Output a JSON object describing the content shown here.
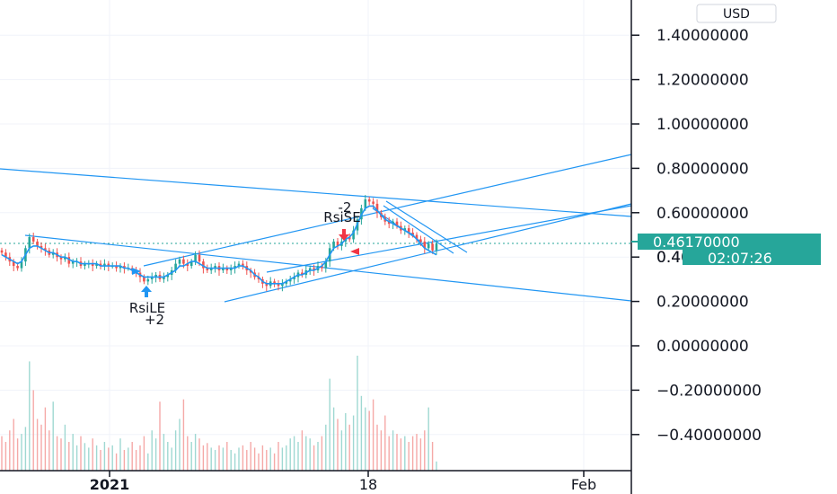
{
  "currency_button": "USD",
  "colors": {
    "up": "#26a69a",
    "down": "#ef5350",
    "trendline": "#2196f3",
    "ma": "#2196f3",
    "price_line": "#26a69a",
    "buy_arrow": "#2196f3",
    "sell_arrow": "#f23645",
    "grid": "#f0f3fa",
    "axis": "#131722"
  },
  "chart_data": {
    "type": "candlestick",
    "y_axis": {
      "ticks": [
        "1.40000000",
        "1.20000000",
        "1.00000000",
        "0.80000000",
        "0.60000000",
        "0.40000000",
        "0.20000000",
        "0.00000000",
        "−0.20000000",
        "−0.40000000"
      ],
      "tick_values": [
        1.4,
        1.2,
        1.0,
        0.8,
        0.6,
        0.4,
        0.2,
        0.0,
        -0.2,
        -0.4
      ],
      "range": [
        -0.58,
        1.55
      ]
    },
    "x_axis": {
      "ticks": [
        "2021",
        "18",
        "Feb"
      ],
      "tick_bold": [
        true,
        false,
        false
      ]
    },
    "last_price": "0.46170000",
    "last_price_value": 0.4617,
    "countdown": "02:07:26",
    "partial_tick_label": "0.4",
    "grid": true,
    "annotations": [
      {
        "label": "RsiLE",
        "qty": "+2",
        "side": "buy"
      },
      {
        "label": "RsiSE",
        "qty": "-2",
        "side": "sell"
      }
    ],
    "closes": [
      0.42,
      0.4,
      0.38,
      0.36,
      0.35,
      0.38,
      0.44,
      0.49,
      0.47,
      0.45,
      0.44,
      0.43,
      0.41,
      0.42,
      0.4,
      0.39,
      0.4,
      0.37,
      0.38,
      0.38,
      0.36,
      0.37,
      0.37,
      0.36,
      0.37,
      0.36,
      0.37,
      0.36,
      0.36,
      0.35,
      0.36,
      0.35,
      0.35,
      0.34,
      0.33,
      0.31,
      0.29,
      0.3,
      0.31,
      0.32,
      0.3,
      0.31,
      0.32,
      0.34,
      0.37,
      0.39,
      0.37,
      0.36,
      0.38,
      0.41,
      0.38,
      0.35,
      0.34,
      0.35,
      0.36,
      0.34,
      0.35,
      0.34,
      0.35,
      0.36,
      0.37,
      0.36,
      0.34,
      0.33,
      0.31,
      0.3,
      0.28,
      0.27,
      0.29,
      0.28,
      0.27,
      0.28,
      0.29,
      0.3,
      0.31,
      0.33,
      0.32,
      0.34,
      0.35,
      0.34,
      0.36,
      0.35,
      0.38,
      0.44,
      0.47,
      0.45,
      0.47,
      0.49,
      0.48,
      0.52,
      0.57,
      0.62,
      0.66,
      0.65,
      0.64,
      0.6,
      0.58,
      0.56,
      0.55,
      0.56,
      0.54,
      0.52,
      0.53,
      0.51,
      0.5,
      0.48,
      0.47,
      0.44,
      0.46,
      0.43,
      0.46
    ],
    "volumes": [
      0.3,
      0.25,
      0.35,
      0.45,
      0.28,
      0.32,
      0.38,
      0.95,
      0.7,
      0.45,
      0.4,
      0.55,
      0.35,
      0.6,
      0.3,
      0.28,
      0.4,
      0.25,
      0.32,
      0.22,
      0.3,
      0.24,
      0.2,
      0.28,
      0.22,
      0.18,
      0.25,
      0.2,
      0.22,
      0.15,
      0.28,
      0.18,
      0.2,
      0.25,
      0.18,
      0.22,
      0.3,
      0.15,
      0.35,
      0.28,
      0.6,
      0.32,
      0.25,
      0.2,
      0.35,
      0.45,
      0.62,
      0.3,
      0.25,
      0.32,
      0.28,
      0.22,
      0.24,
      0.2,
      0.18,
      0.22,
      0.2,
      0.25,
      0.18,
      0.15,
      0.2,
      0.22,
      0.18,
      0.25,
      0.2,
      0.15,
      0.22,
      0.18,
      0.2,
      0.15,
      0.25,
      0.2,
      0.22,
      0.28,
      0.3,
      0.25,
      0.35,
      0.3,
      0.28,
      0.22,
      0.25,
      0.3,
      0.4,
      0.8,
      0.55,
      0.45,
      0.35,
      0.5,
      0.4,
      0.48,
      1.0,
      0.65,
      0.55,
      0.52,
      0.62,
      0.4,
      0.35,
      0.48,
      0.3,
      0.35,
      0.32,
      0.28,
      0.3,
      0.25,
      0.3,
      0.32,
      0.28,
      0.35,
      0.55,
      0.25,
      0.08
    ],
    "series": [
      {
        "name": "",
        "kind": "moving-average",
        "values": [
          0.41,
          0.4,
          0.39,
          0.38,
          0.37,
          0.38,
          0.41,
          0.44,
          0.45,
          0.45,
          0.44,
          0.43,
          0.42,
          0.42,
          0.41,
          0.4,
          0.4,
          0.39,
          0.38,
          0.38,
          0.37,
          0.37,
          0.37,
          0.37,
          0.37,
          0.36,
          0.36,
          0.36,
          0.36,
          0.36,
          0.36,
          0.35,
          0.35,
          0.34,
          0.33,
          0.32,
          0.31,
          0.31,
          0.31,
          0.31,
          0.31,
          0.31,
          0.32,
          0.33,
          0.34,
          0.36,
          0.36,
          0.37,
          0.38,
          0.38,
          0.37,
          0.36,
          0.35,
          0.35,
          0.35,
          0.35,
          0.35,
          0.35,
          0.35,
          0.35,
          0.36,
          0.36,
          0.35,
          0.34,
          0.32,
          0.31,
          0.29,
          0.28,
          0.28,
          0.28,
          0.28,
          0.28,
          0.29,
          0.3,
          0.31,
          0.32,
          0.32,
          0.33,
          0.34,
          0.34,
          0.35,
          0.36,
          0.38,
          0.41,
          0.44,
          0.45,
          0.46,
          0.48,
          0.49,
          0.51,
          0.55,
          0.59,
          0.62,
          0.63,
          0.63,
          0.61,
          0.59,
          0.57,
          0.56,
          0.55,
          0.54,
          0.53,
          0.52,
          0.51,
          0.5,
          0.48,
          0.46,
          0.44,
          0.43,
          0.42,
          0.41
        ]
      }
    ]
  }
}
